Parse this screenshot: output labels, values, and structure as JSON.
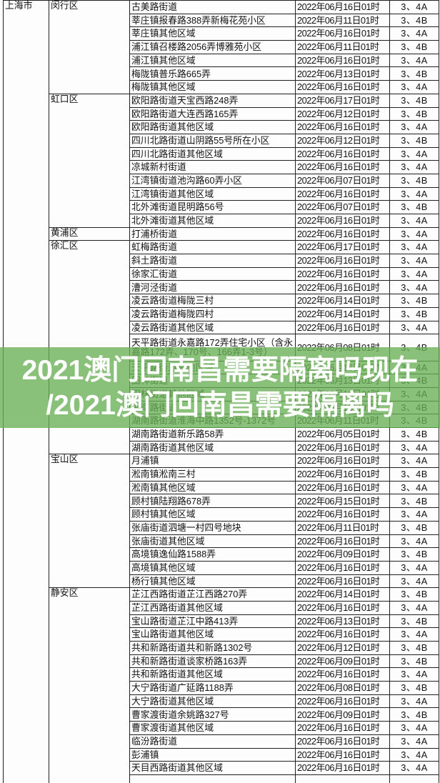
{
  "overlay": {
    "line1": "2021澳门回南昌需要隔离吗现在",
    "line2": "/2021澳门回南昌需要隔离吗",
    "band_color": "#69B054",
    "text_color": "#FFFFFF"
  },
  "colors": {
    "table_border": "#1F1F1F",
    "cell_background": "#FDFDFD",
    "text": "#121212"
  },
  "table": {
    "city": "上海市",
    "districts": [
      {
        "name": "闵行区",
        "rows": [
          {
            "area": "古美路街道",
            "date": "2022年06月16日01时",
            "cls": "3、4A"
          },
          {
            "area": "莘庄镇报春路388弄新梅花苑小区",
            "date": "2022年06月11日01时",
            "cls": "3、4B"
          },
          {
            "area": "莘庄镇其他区域",
            "date": "2022年06月16日01时",
            "cls": "3、4A"
          },
          {
            "area": "浦江镇召楼路2056弄博雅苑小区",
            "date": "2022年06月11日01时",
            "cls": "3、4B"
          },
          {
            "area": "浦江镇其他区域",
            "date": "2022年06月16日01时",
            "cls": "3、4A"
          },
          {
            "area": "梅陇镇普乐路665弄",
            "date": "2022年06月13日01时",
            "cls": "3、4B"
          },
          {
            "area": "梅陇镇其他区域",
            "date": "2022年06月16日01时",
            "cls": "3、4A"
          }
        ]
      },
      {
        "name": "虹口区",
        "rows": [
          {
            "area": "欧阳路街道天宝西路248弄",
            "date": "2022年06月17日01时",
            "cls": "3、4B"
          },
          {
            "area": "欧阳路街道大连西路165弄",
            "date": "2022年06月12日01时",
            "cls": "3、4B"
          },
          {
            "area": "欧阳路街道其他区域",
            "date": "2022年06月16日01时",
            "cls": "3、4A"
          },
          {
            "area": "四川北路街道山阴路55号所在小区",
            "date": "2022年06月12日01时",
            "cls": "3、4B"
          },
          {
            "area": "四川北路街道其他区域",
            "date": "2022年06月16日01时",
            "cls": "3、4A"
          },
          {
            "area": "凉城新村街道",
            "date": "2022年06月16日01时",
            "cls": "3、4A"
          },
          {
            "area": "江湾镇街道池沟路60弄小区",
            "date": "2022年06月07日01时",
            "cls": "3、4B"
          },
          {
            "area": "江湾镇街道其他区域",
            "date": "2022年06月16日01时",
            "cls": "3、4A"
          },
          {
            "area": "北外滩街道昆明路56号",
            "date": "2022年06月07日01时",
            "cls": "3、4B"
          },
          {
            "area": "北外滩街道其他区域",
            "date": "2022年06月16日01时",
            "cls": "3、4A"
          }
        ]
      },
      {
        "name": "黄浦区",
        "rows": [
          {
            "area": "打浦桥街道",
            "date": "2022年06月16日01时",
            "cls": "3、4A"
          }
        ]
      },
      {
        "name": "徐汇区",
        "rows": [
          {
            "area": "虹梅路街道",
            "date": "2022年06月17日01时",
            "cls": "3、4A"
          },
          {
            "area": "斜土路街道",
            "date": "2022年06月16日01时",
            "cls": "3、4A"
          },
          {
            "area": "徐家汇街道",
            "date": "2022年06月16日01时",
            "cls": "3、4A"
          },
          {
            "area": "漕河泾街道",
            "date": "2022年06月16日01时",
            "cls": "3、4A"
          },
          {
            "area": "凌云路街道梅陇三村",
            "date": "2022年06月14日01时",
            "cls": "3、4B"
          },
          {
            "area": "凌云路街道梅陇四村",
            "date": "2022年06月14日01时",
            "cls": "3、4B"
          },
          {
            "area": "凌云路街道其他区域",
            "date": "2022年06月16日01时",
            "cls": "3、4A"
          },
          {
            "area": "天平路街道永嘉路172弄住宅小区（含永嘉路172弄、170号、166弄1-3号）",
            "date": "2022年06月08日01时",
            "cls": "3、4B",
            "tall": true
          },
          {
            "area": "天平路街道其他区域",
            "date": "2022年06月16日01时",
            "cls": "3、4A"
          },
          {
            "area": "田林街道",
            "date": "2022年06月13日01时",
            "cls": "3、4B"
          },
          {
            "area": "田林街道其他区域",
            "date": "2022年06月16日01时",
            "cls": "3、4A"
          },
          {
            "area": "湖南路街道",
            "date": "2022年06月13日01时",
            "cls": "3、4B"
          },
          {
            "area": "湖南路街道淮海中路1352号-1372号",
            "date": "2022年06月11日01时",
            "cls": "3、4B"
          },
          {
            "area": "湖南路街道新乐路58弄",
            "date": "2022年06月05日01时",
            "cls": "3、4B"
          },
          {
            "area": "湖南路街道其他区域",
            "date": "2022年06月16日01时",
            "cls": "3、4A"
          }
        ]
      },
      {
        "name": "宝山区",
        "rows": [
          {
            "area": "月浦镇",
            "date": "2022年06月16日01时",
            "cls": "3、4A"
          },
          {
            "area": "淞南镇淞南三村",
            "date": "2022年06月16日01时",
            "cls": "3、4B"
          },
          {
            "area": "淞南镇其他区域",
            "date": "2022年06月16日01时",
            "cls": "3、4A"
          },
          {
            "area": "顾村镇陆翔路678弄",
            "date": "2022年06月15日01时",
            "cls": "3、4B"
          },
          {
            "area": "顾村镇其他区域",
            "date": "2022年06月16日01时",
            "cls": "3、4A"
          },
          {
            "area": "张庙街道泗塘一村四号地块",
            "date": "2022年06月11日01时",
            "cls": "3、4B"
          },
          {
            "area": "张庙街道其他区域",
            "date": "2022年06月16日01时",
            "cls": "3、4A"
          },
          {
            "area": "高境镇逸仙路1588弄",
            "date": "2022年06月09日01时",
            "cls": "3、4B"
          },
          {
            "area": "高境镇其他区域",
            "date": "2022年06月16日01时",
            "cls": "3、4A"
          },
          {
            "area": "杨行镇其他区域",
            "date": "2022年06月16日01时",
            "cls": "3、4A"
          }
        ]
      },
      {
        "name": "静安区",
        "rows": [
          {
            "area": "芷江西路街道芷江西路270弄",
            "date": "2022年06月14日01时",
            "cls": "3、4B"
          },
          {
            "area": "芷江西路街道其他区域",
            "date": "2022年06月16日01时",
            "cls": "3、4A"
          },
          {
            "area": "宝山路街道芷江中路413弄",
            "date": "2022年06月13日01时",
            "cls": "3、4B"
          },
          {
            "area": "宝山路街道其他区域",
            "date": "2022年06月16日01时",
            "cls": "3、4A"
          },
          {
            "area": "共和新路街道共和新路1302号",
            "date": "2022年06月12日01时",
            "cls": "3、4B"
          },
          {
            "area": "共和新路街道谈家桥路163弄",
            "date": "2022年06月09日01时",
            "cls": "3、4B"
          },
          {
            "area": "共和新路街道其他区域",
            "date": "2022年06月16日01时",
            "cls": "3、4A"
          },
          {
            "area": "大宁路街道广延路1188弄",
            "date": "2022年06月08日01时",
            "cls": "3、4B"
          },
          {
            "area": "大宁路街道其他区域",
            "date": "2022年06月16日01时",
            "cls": "3、4A"
          },
          {
            "area": "曹家渡街道余姚路327号",
            "date": "2022年06月09日01时",
            "cls": "3、4B"
          },
          {
            "area": "曹家渡街道其他区域",
            "date": "2022年06月16日01时",
            "cls": "3、4A"
          },
          {
            "area": "临汾路街道",
            "date": "2022年06月16日01时",
            "cls": "3、4A"
          },
          {
            "area": "彭浦镇",
            "date": "2022年06月16日01时",
            "cls": "3、4A"
          },
          {
            "area": "天目西路街道其他区域",
            "date": "2022年06月16日01时",
            "cls": "3、4A"
          },
          {
            "area": "",
            "date": "",
            "cls": "",
            "stub": true
          }
        ]
      }
    ]
  }
}
